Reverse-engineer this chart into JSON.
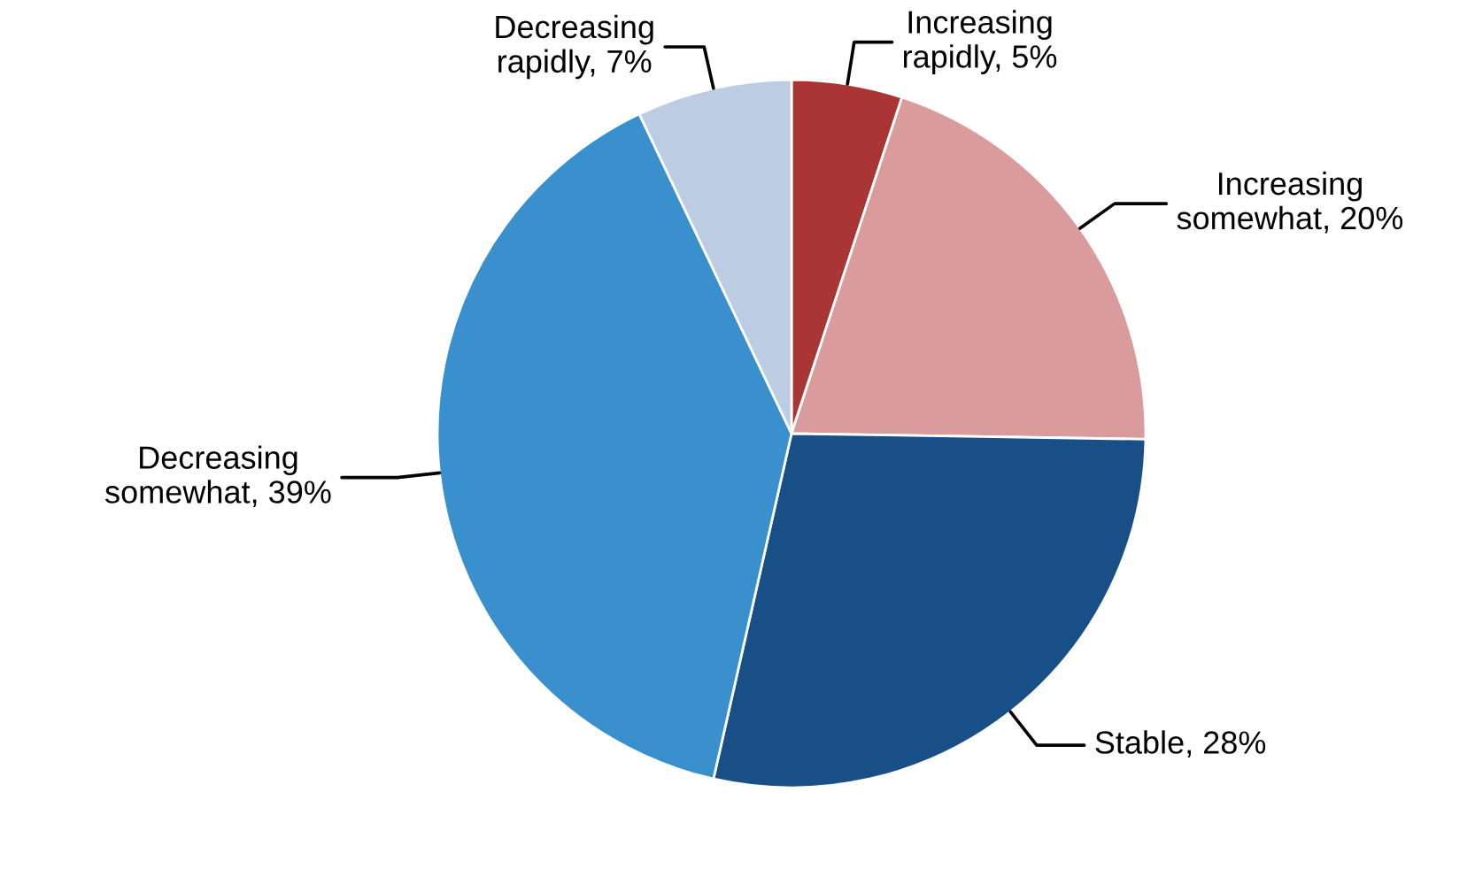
{
  "chart_data": {
    "type": "pie",
    "categories": [
      "Increasing rapidly",
      "Increasing somewhat",
      "Stable",
      "Decreasing somewhat",
      "Decreasing rapidly"
    ],
    "values": [
      5,
      20,
      28,
      39,
      7
    ],
    "value_labels": [
      "5%",
      "20%",
      "28%",
      "39%",
      "7%"
    ],
    "colors": [
      "#a93535",
      "#d99b9c",
      "#174f86",
      "#3a90cc",
      "#bccde3"
    ]
  }
}
